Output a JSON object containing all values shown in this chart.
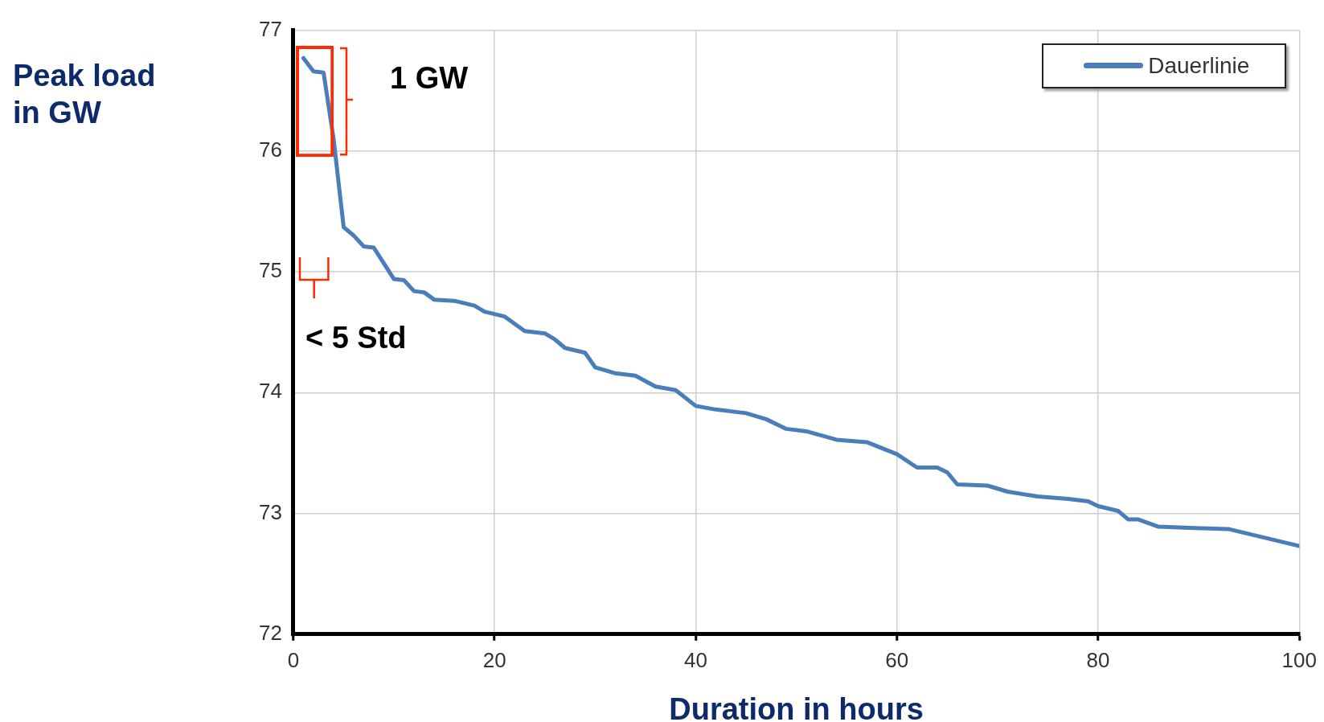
{
  "chart_data": {
    "type": "line",
    "xlabel": "Duration in hours",
    "ylabel": "Peak load in GW",
    "x": [
      1,
      2,
      3,
      4,
      5,
      6,
      7,
      8,
      9,
      10,
      11,
      12,
      13,
      14,
      16,
      18,
      19,
      21,
      23,
      25,
      26,
      27,
      29,
      30,
      32,
      34,
      36,
      38,
      40,
      42,
      45,
      47,
      49,
      51,
      54,
      57,
      60,
      62,
      64,
      65,
      66,
      69,
      71,
      74,
      77,
      79,
      80,
      82,
      83,
      84,
      86,
      89,
      93,
      97,
      100
    ],
    "series": [
      {
        "name": "Dauerlinie",
        "color": "#4a7ebb",
        "values": [
          76.77,
          76.66,
          76.65,
          76.1,
          75.37,
          75.3,
          75.21,
          75.2,
          75.07,
          74.94,
          74.93,
          74.84,
          74.83,
          74.77,
          74.76,
          74.72,
          74.67,
          74.63,
          74.51,
          74.49,
          74.44,
          74.37,
          74.33,
          74.21,
          74.16,
          74.14,
          74.05,
          74.02,
          73.89,
          73.86,
          73.83,
          73.78,
          73.7,
          73.68,
          73.61,
          73.59,
          73.49,
          73.38,
          73.38,
          73.34,
          73.24,
          73.23,
          73.18,
          73.14,
          73.12,
          73.1,
          73.06,
          73.02,
          72.95,
          72.95,
          72.89,
          72.88,
          72.87,
          72.79,
          72.73
        ]
      }
    ],
    "xlim": [
      0,
      100
    ],
    "xticks": [
      0,
      20,
      40,
      60,
      80,
      100
    ],
    "ylim": [
      72,
      77
    ],
    "yticks": [
      72,
      73,
      74,
      75,
      76,
      77
    ],
    "grid": true,
    "legend": "top right",
    "marker": "none",
    "line_style": "solid",
    "annotations": [
      "1 GW",
      "< 5 Std"
    ]
  }
}
